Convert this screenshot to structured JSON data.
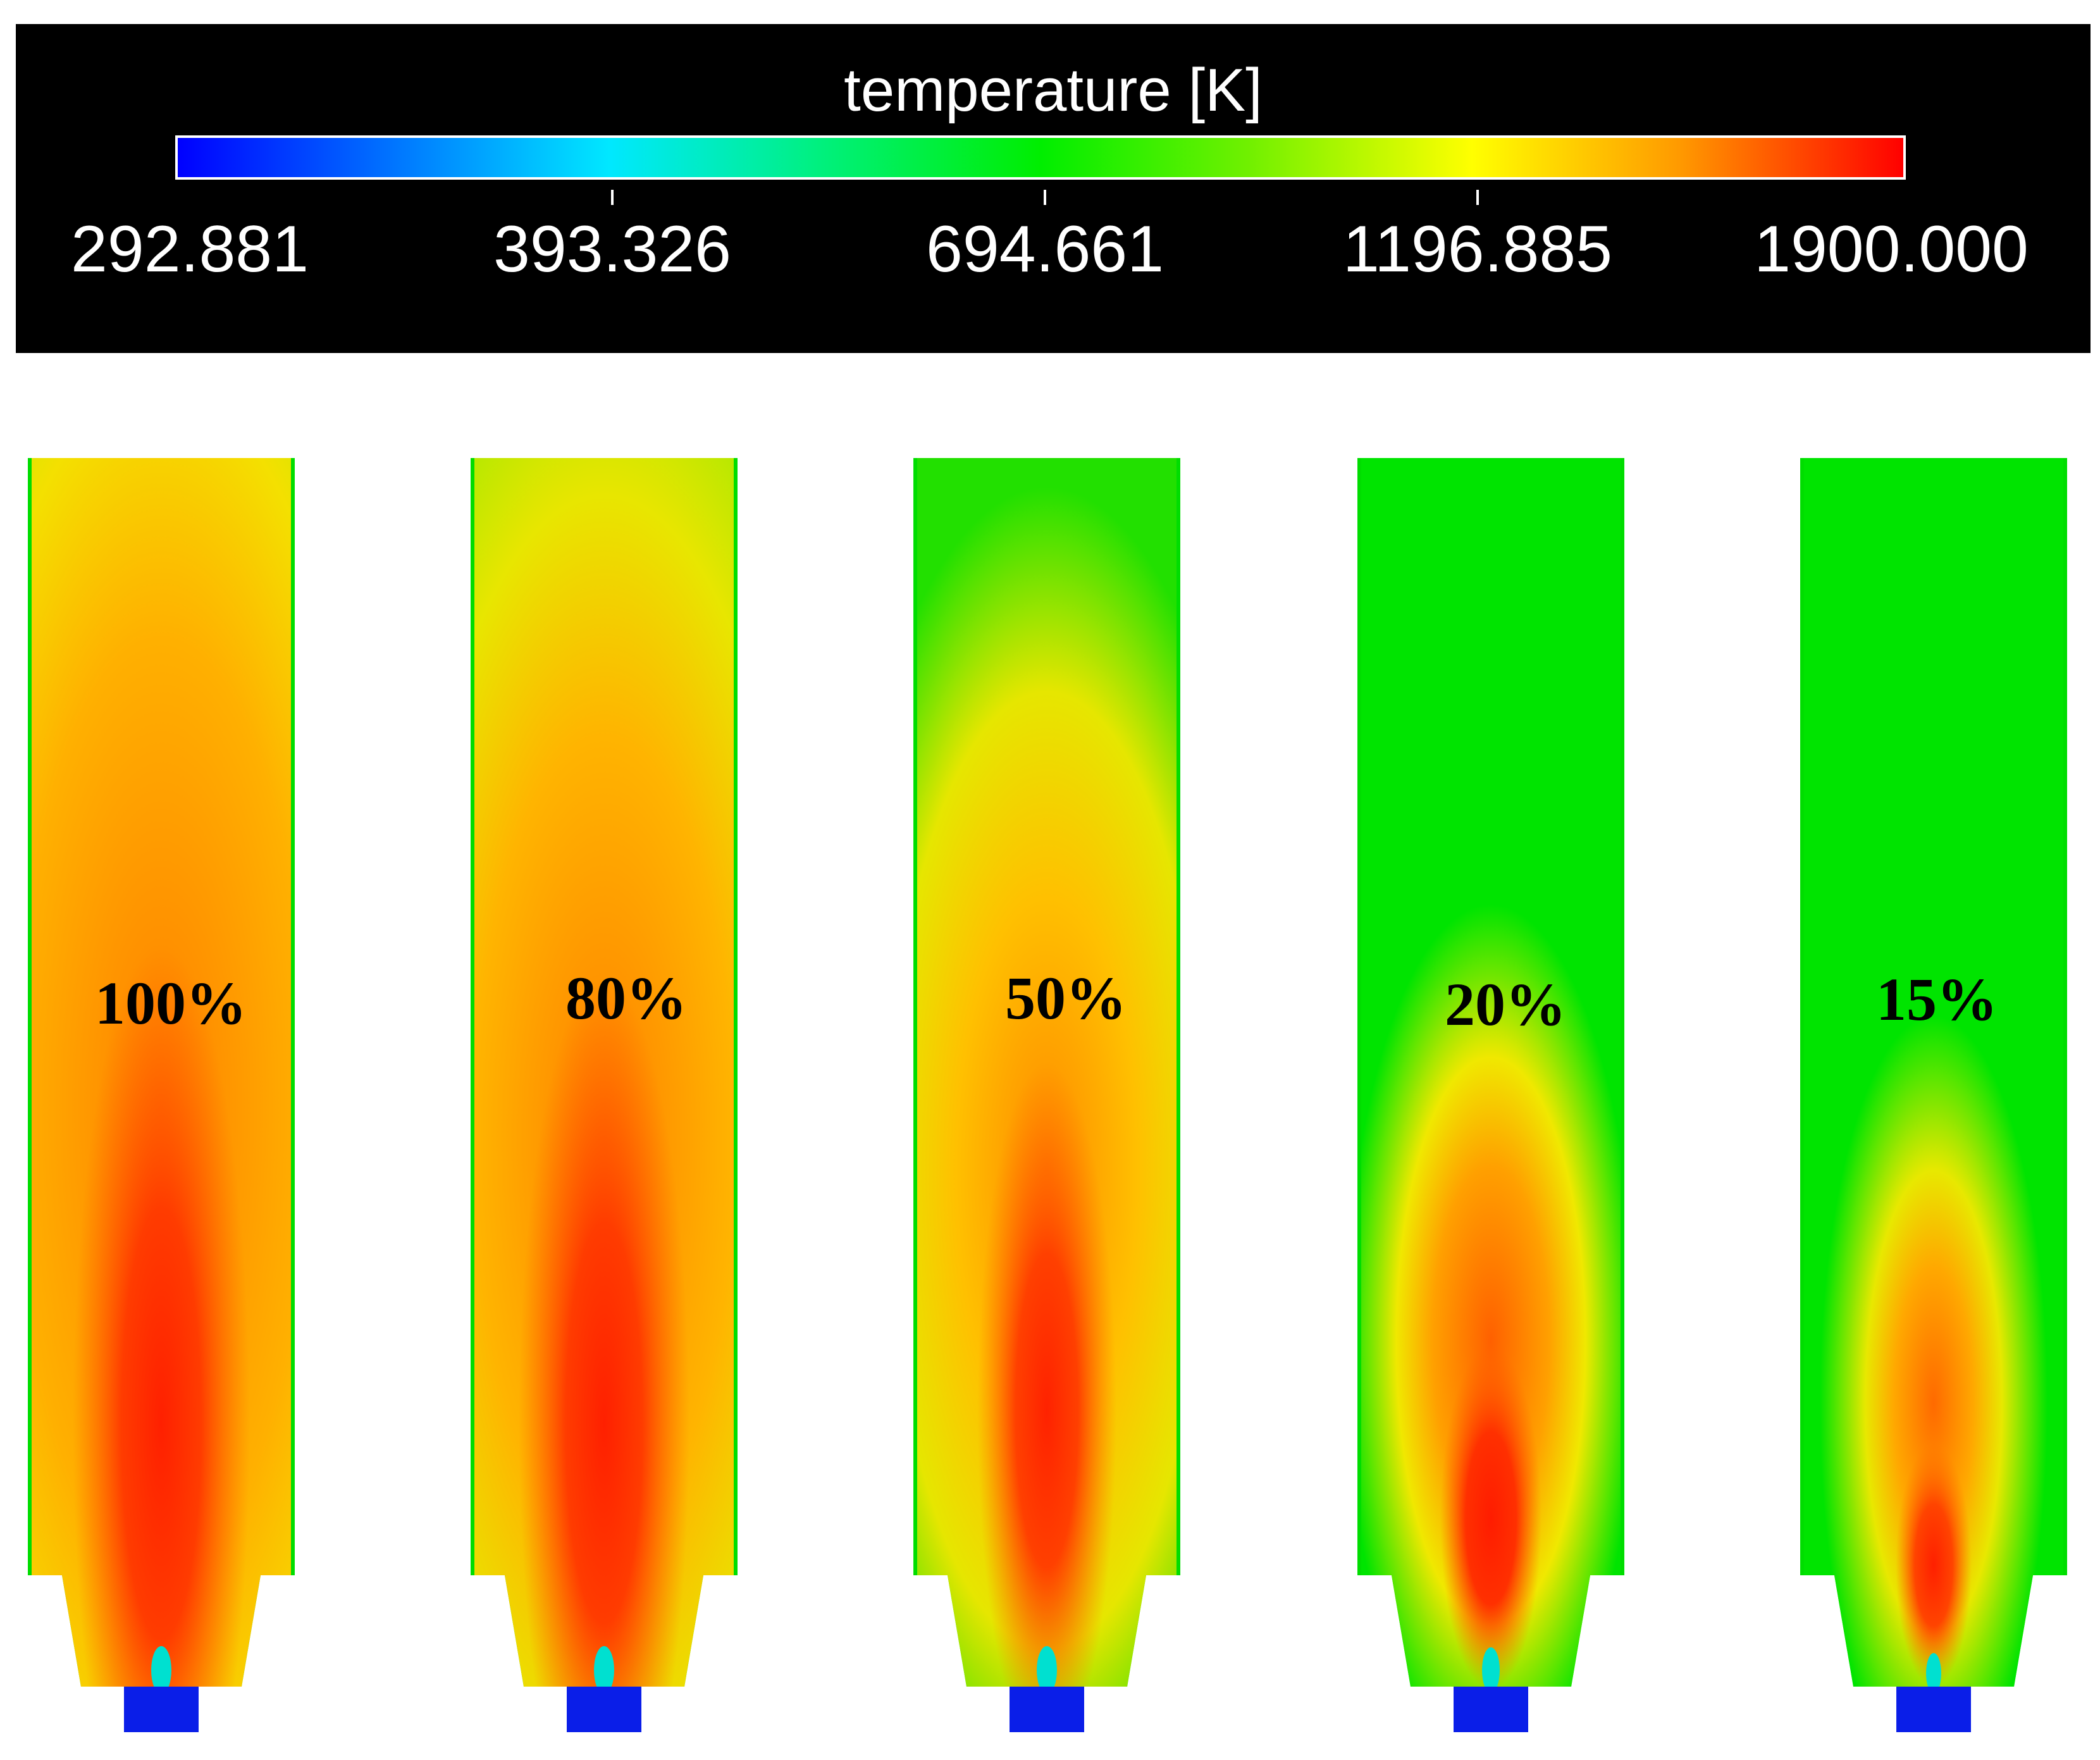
{
  "legend": {
    "title": "temperature [K]",
    "ticks": [
      "292.881",
      "393.326",
      "694.661",
      "1196.885",
      "1900.000"
    ],
    "colors": {
      "min": "#0000ff",
      "low": "#00e8ff",
      "mid": "#00ee00",
      "high": "#ffff00",
      "max": "#ff0000"
    }
  },
  "cases": [
    {
      "label": "100%",
      "hot_extent": 1.0
    },
    {
      "label": "80%",
      "hot_extent": 0.8
    },
    {
      "label": "50%",
      "hot_extent": 0.5
    },
    {
      "label": "20%",
      "hot_extent": 0.2
    },
    {
      "label": "15%",
      "hot_extent": 0.15
    }
  ]
}
